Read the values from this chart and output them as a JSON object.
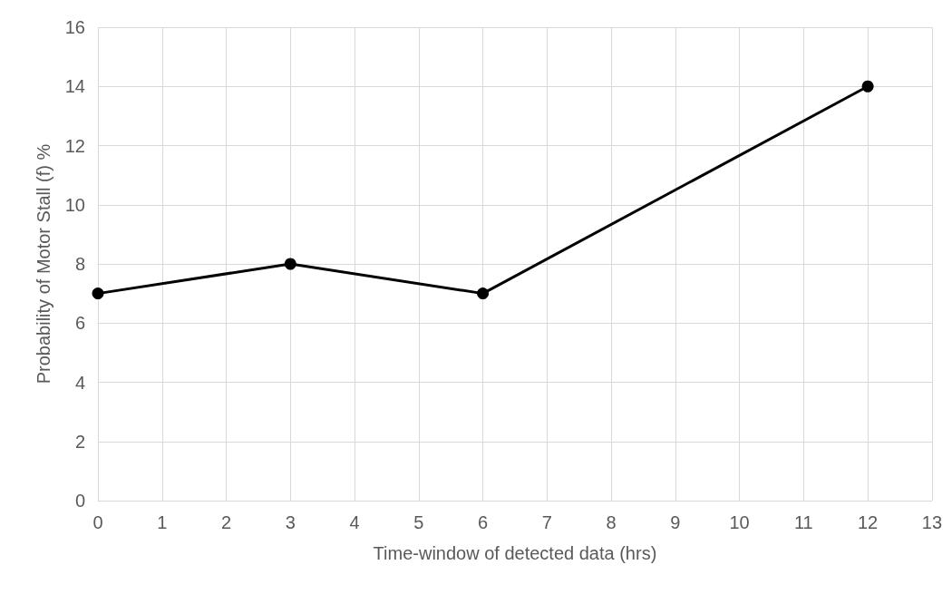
{
  "chart_data": {
    "type": "line",
    "xlabel": "Time-window of detected data (hrs)",
    "ylabel": "Probability of Motor Stall (f) %",
    "x": [
      0,
      3,
      6,
      12
    ],
    "series": [
      {
        "color": "#000000",
        "values": [
          7,
          8,
          7,
          14
        ]
      }
    ],
    "xlim": [
      0,
      13
    ],
    "xticks": [
      0,
      1,
      2,
      3,
      4,
      5,
      6,
      7,
      8,
      9,
      10,
      11,
      12,
      13
    ],
    "ylim": [
      0,
      16
    ],
    "yticks": [
      0,
      2,
      4,
      6,
      8,
      10,
      12,
      14,
      16
    ],
    "grid": true,
    "marker": "circle",
    "line_style": "solid"
  }
}
